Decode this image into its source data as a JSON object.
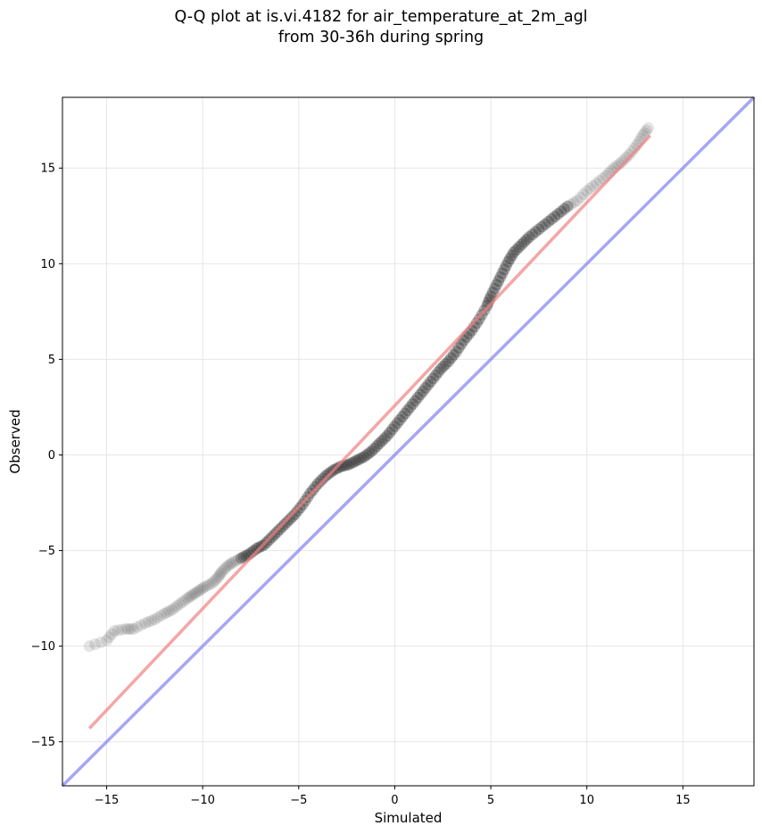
{
  "figure": {
    "title_line_1": "Q-Q plot at is.vi.4182 for air_temperature_at_2m_agl",
    "title_line_2": "from 30-36h during spring"
  },
  "chart_data": {
    "type": "scatter",
    "title": "Q-Q plot at is.vi.4182 for air_temperature_at_2m_agl\nfrom 30-36h during spring",
    "xlabel": "Simulated",
    "ylabel": "Observed",
    "xlim": [
      -17.3,
      18.7
    ],
    "ylim": [
      -17.3,
      18.7
    ],
    "xticks": [
      -15,
      -10,
      -5,
      0,
      5,
      10,
      15
    ],
    "yticks": [
      -15,
      -10,
      -5,
      0,
      5,
      10,
      15
    ],
    "xtick_labels": [
      "−15",
      "−10",
      "−5",
      "0",
      "5",
      "10",
      "15"
    ],
    "ytick_labels": [
      "−15",
      "−10",
      "−5",
      "0",
      "5",
      "10",
      "15"
    ],
    "grid": true,
    "legend": "none",
    "colors": {
      "points": "#2b2b2b",
      "fit_line": "#f08080",
      "identity_line": "#8080f0",
      "grid": "#e6e6e6"
    },
    "series": [
      {
        "kind": "quantile_points",
        "points": [
          [
            -15.9,
            -10.0
          ],
          [
            -15.0,
            -9.7
          ],
          [
            -14.6,
            -9.2
          ],
          [
            -14.0,
            -9.1
          ],
          [
            -13.6,
            -9.1
          ],
          [
            -13.0,
            -8.8
          ],
          [
            -12.5,
            -8.6
          ],
          [
            -12.0,
            -8.3
          ],
          [
            -11.6,
            -8.1
          ],
          [
            -11.2,
            -7.8
          ],
          [
            -10.8,
            -7.5
          ],
          [
            -10.5,
            -7.3
          ],
          [
            -10.2,
            -7.1
          ],
          [
            -9.9,
            -6.9
          ],
          [
            -9.5,
            -6.7
          ],
          [
            -9.2,
            -6.4
          ],
          [
            -9.0,
            -6.1
          ],
          [
            -8.7,
            -5.8
          ],
          [
            -8.4,
            -5.6
          ],
          [
            -8.0,
            -5.4
          ],
          [
            -7.6,
            -5.2
          ],
          [
            -7.2,
            -4.9
          ],
          [
            -6.8,
            -4.7
          ],
          [
            -6.4,
            -4.3
          ],
          [
            -6.0,
            -3.9
          ],
          [
            -5.6,
            -3.5
          ],
          [
            -5.2,
            -3.1
          ],
          [
            -4.8,
            -2.6
          ],
          [
            -4.4,
            -2.0
          ],
          [
            -4.0,
            -1.5
          ],
          [
            -3.6,
            -1.1
          ],
          [
            -3.2,
            -0.8
          ],
          [
            -2.8,
            -0.6
          ],
          [
            -2.4,
            -0.5
          ],
          [
            -2.0,
            -0.3
          ],
          [
            -1.6,
            -0.1
          ],
          [
            -1.2,
            0.2
          ],
          [
            -0.8,
            0.6
          ],
          [
            -0.4,
            1.0
          ],
          [
            0.0,
            1.5
          ],
          [
            0.4,
            2.0
          ],
          [
            0.8,
            2.5
          ],
          [
            1.2,
            3.0
          ],
          [
            1.6,
            3.5
          ],
          [
            2.0,
            4.0
          ],
          [
            2.4,
            4.5
          ],
          [
            2.8,
            4.9
          ],
          [
            3.2,
            5.4
          ],
          [
            3.6,
            6.0
          ],
          [
            4.0,
            6.5
          ],
          [
            4.4,
            7.1
          ],
          [
            4.8,
            7.8
          ],
          [
            5.0,
            8.3
          ],
          [
            5.3,
            8.9
          ],
          [
            5.6,
            9.5
          ],
          [
            5.9,
            10.1
          ],
          [
            6.2,
            10.6
          ],
          [
            6.6,
            11.0
          ],
          [
            7.0,
            11.4
          ],
          [
            7.5,
            11.8
          ],
          [
            8.0,
            12.2
          ],
          [
            8.5,
            12.6
          ],
          [
            9.0,
            13.0
          ],
          [
            9.5,
            13.3
          ],
          [
            10.0,
            13.8
          ],
          [
            10.5,
            14.2
          ],
          [
            11.0,
            14.6
          ],
          [
            11.4,
            15.0
          ],
          [
            11.8,
            15.3
          ],
          [
            12.2,
            15.7
          ],
          [
            12.6,
            16.2
          ],
          [
            12.9,
            16.7
          ],
          [
            13.2,
            17.1
          ]
        ]
      },
      {
        "kind": "fit_line",
        "x": [
          -15.9,
          13.3
        ],
        "y": [
          -14.3,
          16.7
        ]
      },
      {
        "kind": "identity_line",
        "x": [
          -17.3,
          18.7
        ],
        "y": [
          -17.3,
          18.7
        ]
      }
    ]
  }
}
